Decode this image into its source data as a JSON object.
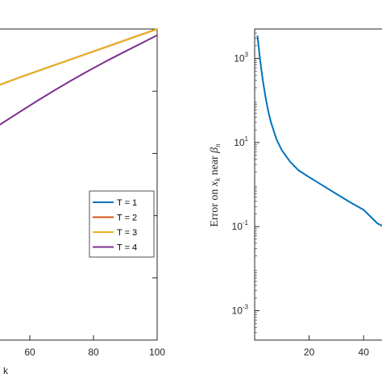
{
  "chart_data": [
    {
      "type": "line",
      "xlabel": "k",
      "xlim": [
        0,
        100
      ],
      "ylim": [
        0,
        1
      ],
      "xticks": [
        60,
        80,
        100
      ],
      "legend": {
        "placement": "center-right"
      },
      "series": [
        {
          "name": "T = 1",
          "color": "#0072BD",
          "x": [
            0,
            25,
            50,
            75,
            100
          ],
          "y": [
            0.62,
            0.72,
            0.82,
            0.91,
            1.0
          ]
        },
        {
          "name": "T = 2",
          "color": "#D95319",
          "x": [
            0,
            25,
            50,
            75,
            100
          ],
          "y": [
            0.62,
            0.72,
            0.82,
            0.91,
            1.0
          ]
        },
        {
          "name": "T = 3",
          "color": "#EDB120",
          "x": [
            0,
            25,
            50,
            75,
            100
          ],
          "y": [
            0.62,
            0.72,
            0.82,
            0.91,
            1.0
          ]
        },
        {
          "name": "T = 4",
          "color": "#7E2F8E",
          "x": [
            0,
            25,
            50,
            75,
            100
          ],
          "y": [
            0.35,
            0.52,
            0.69,
            0.85,
            0.98
          ]
        }
      ]
    },
    {
      "type": "line",
      "ylabel": "Error on x_k near β_n",
      "ylabel_parts": {
        "a": "Error on ",
        "x": "x",
        "k": "k",
        "mid": " near ",
        "beta": "β",
        "n": "n"
      },
      "yscale": "log",
      "xlim": [
        0,
        50
      ],
      "ylim": [
        0.0002,
        5000
      ],
      "xticks": [
        20,
        40
      ],
      "yticks": [
        {
          "base": "10",
          "exp": "3"
        },
        {
          "base": "10",
          "exp": "1"
        },
        {
          "base": "10",
          "exp": "-1"
        },
        {
          "base": "10",
          "exp": "-3"
        }
      ],
      "series": [
        {
          "color": "#0072BD",
          "x": [
            1,
            2,
            3,
            4,
            5,
            6,
            8,
            10,
            13,
            16,
            20,
            25,
            30,
            35,
            40,
            45,
            50
          ],
          "y": [
            3500,
            900,
            300,
            120,
            55,
            30,
            12,
            6.5,
            3.5,
            2.2,
            1.5,
            0.95,
            0.6,
            0.38,
            0.25,
            0.12,
            0.08
          ]
        }
      ]
    }
  ]
}
